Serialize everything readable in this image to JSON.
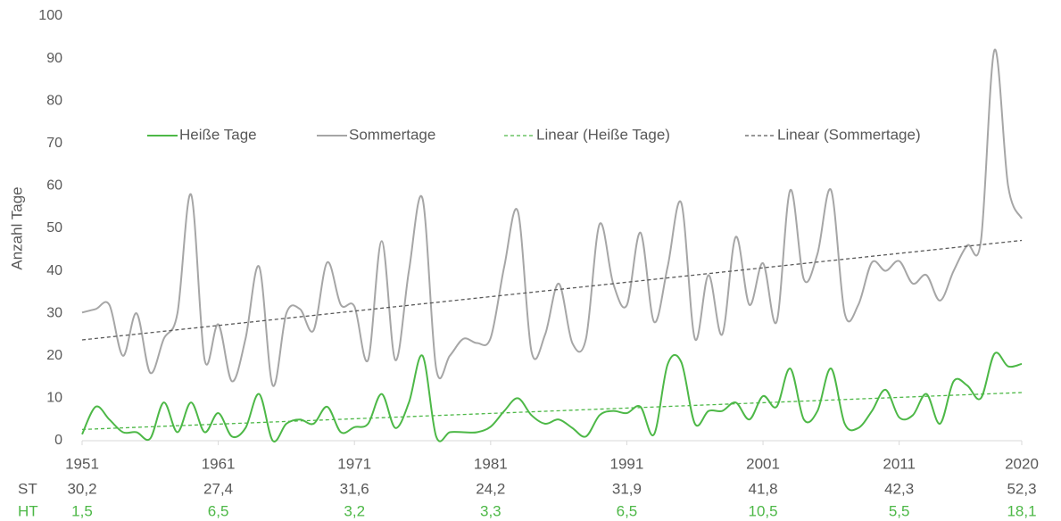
{
  "chart_data": {
    "type": "line",
    "smooth": true,
    "y_label": "Anzahl Tage",
    "x": [
      1951,
      1952,
      1953,
      1954,
      1955,
      1956,
      1957,
      1958,
      1959,
      1960,
      1961,
      1962,
      1963,
      1964,
      1965,
      1966,
      1967,
      1968,
      1969,
      1970,
      1971,
      1972,
      1973,
      1974,
      1975,
      1976,
      1977,
      1978,
      1979,
      1980,
      1981,
      1982,
      1983,
      1984,
      1985,
      1986,
      1987,
      1988,
      1989,
      1990,
      1991,
      1992,
      1993,
      1994,
      1995,
      1996,
      1997,
      1998,
      1999,
      2000,
      2001,
      2002,
      2003,
      2004,
      2005,
      2006,
      2007,
      2008,
      2009,
      2010,
      2011,
      2012,
      2013,
      2014,
      2015,
      2016,
      2017,
      2018,
      2019,
      2020
    ],
    "series": [
      {
        "name": "Heiße Tage",
        "color": "#4db847",
        "values": [
          1.5,
          8,
          5,
          2,
          2,
          0.5,
          9,
          2,
          9,
          2,
          6.5,
          1,
          3,
          11,
          0,
          4,
          5,
          4,
          8,
          2,
          3.2,
          4,
          11,
          3,
          9,
          20,
          1,
          2,
          2,
          2,
          3.3,
          7,
          10,
          6,
          4,
          5,
          3,
          1,
          6,
          7,
          6.5,
          8,
          1.5,
          18,
          18.5,
          4,
          7,
          7,
          9,
          5,
          10.5,
          8,
          17,
          5,
          7,
          17,
          4,
          3,
          7,
          12,
          5.5,
          6,
          11,
          4,
          14,
          13,
          10,
          20.5,
          17.5,
          18.1
        ]
      },
      {
        "name": "Sommertage",
        "color": "#a6a6a6",
        "values": [
          30.2,
          31,
          32,
          20,
          30,
          16,
          24,
          30,
          58,
          19,
          27.4,
          14,
          24,
          41,
          13,
          30,
          31,
          26,
          42,
          32,
          31.6,
          19,
          47,
          19,
          40,
          57,
          17,
          20,
          24,
          23,
          24.2,
          41,
          54,
          21,
          25,
          37,
          23,
          24,
          51,
          37,
          31.9,
          49,
          28,
          41,
          56,
          24,
          39,
          25,
          48,
          32,
          41.8,
          28,
          59,
          38,
          44,
          59,
          30,
          32,
          42,
          40,
          42.3,
          37,
          39,
          33,
          40,
          46,
          47,
          92,
          60,
          52.3
        ]
      }
    ],
    "trendlines": [
      {
        "name": "Linear (Heiße Tage)",
        "series": 0,
        "color": "#4db847"
      },
      {
        "name": "Linear (Sommertage)",
        "series": 1,
        "color": "#595959"
      }
    ],
    "xlim": [
      1951,
      2020
    ],
    "xticks": [
      1951,
      1961,
      1971,
      1981,
      1991,
      2001,
      2011,
      2020
    ],
    "ylim": [
      0,
      100
    ],
    "yticks": [
      0,
      10,
      20,
      30,
      40,
      50,
      60,
      70,
      80,
      90,
      100
    ],
    "legend": "top",
    "table": {
      "rows": [
        {
          "label": "ST",
          "color": "#595959",
          "values": [
            "30,2",
            "27,4",
            "31,6",
            "24,2",
            "31,9",
            "41,8",
            "42,3",
            "52,3"
          ]
        },
        {
          "label": "HT",
          "color": "#4db847",
          "values": [
            "1,5",
            "6,5",
            "3,2",
            "3,3",
            "6,5",
            "10,5",
            "5,5",
            "18,1"
          ]
        }
      ]
    }
  }
}
